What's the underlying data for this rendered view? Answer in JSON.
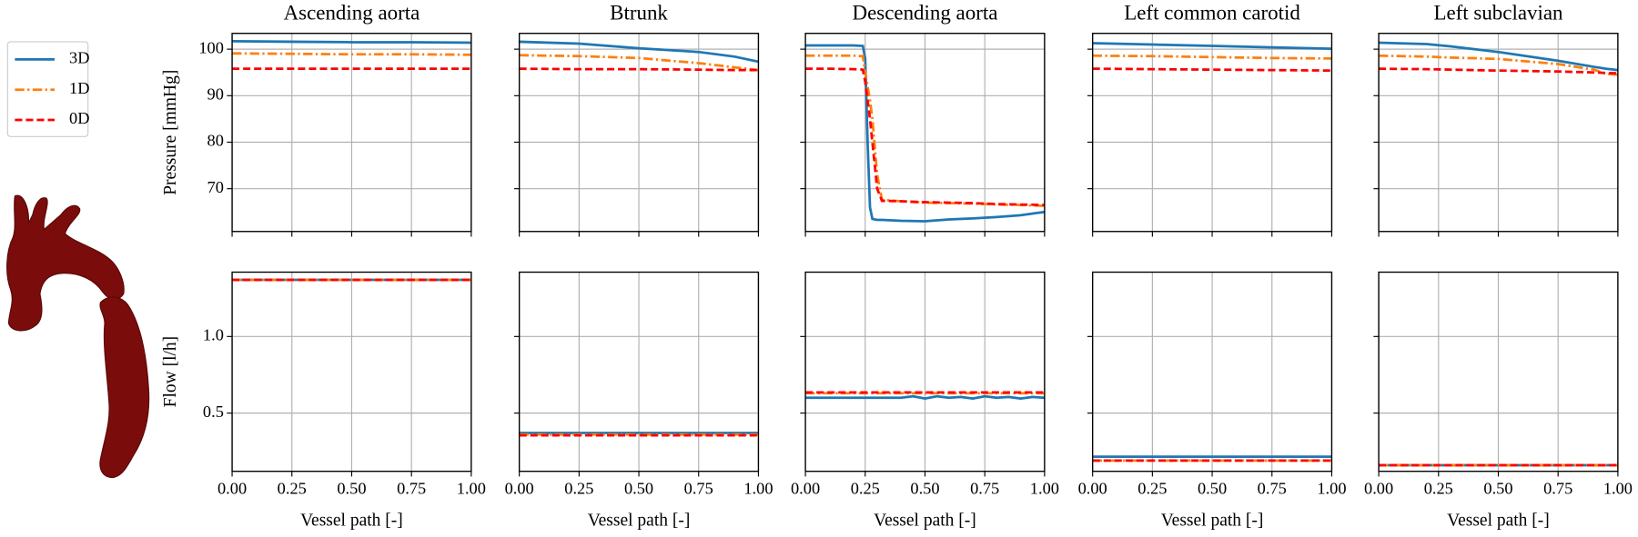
{
  "chart_data": [
    {
      "type": "line",
      "title": "Ascending aorta",
      "ylabel": "Pressure [mmHg]",
      "ylim": [
        60.8,
        103.4
      ],
      "yticks": [
        70,
        80,
        90,
        100
      ],
      "grid": true,
      "legend": "outside-left",
      "x": [
        0,
        0.25,
        0.5,
        0.75,
        1.0
      ],
      "series": [
        {
          "name": "3D",
          "color": "#1f77b4",
          "linestyle": "solid",
          "values": [
            101.7,
            101.6,
            101.5,
            101.5,
            101.4
          ]
        },
        {
          "name": "1D",
          "color": "#ff7f0e",
          "linestyle": "dashdot",
          "values": [
            99.1,
            99.0,
            98.9,
            98.9,
            98.8
          ]
        },
        {
          "name": "0D",
          "color": "#ff0000",
          "linestyle": "dashed",
          "values": [
            95.8,
            95.8,
            95.8,
            95.8,
            95.8
          ]
        }
      ]
    },
    {
      "type": "line",
      "title": "Btrunk",
      "x": [
        0,
        0.25,
        0.5,
        0.75,
        0.9,
        1.0
      ],
      "series": [
        {
          "name": "3D",
          "color": "#1f77b4",
          "linestyle": "solid",
          "values": [
            101.6,
            101.2,
            100.2,
            99.4,
            98.4,
            97.3
          ]
        },
        {
          "name": "1D",
          "color": "#ff7f0e",
          "linestyle": "dashdot",
          "values": [
            98.7,
            98.5,
            98.1,
            97.0,
            96.1,
            95.5
          ]
        },
        {
          "name": "0D",
          "color": "#ff0000",
          "linestyle": "dashed",
          "values": [
            95.8,
            95.7,
            95.7,
            95.6,
            95.5,
            95.5
          ]
        }
      ]
    },
    {
      "type": "line",
      "title": "Descending aorta",
      "x": [
        0,
        0.1,
        0.2,
        0.24,
        0.25,
        0.26,
        0.27,
        0.28,
        0.3,
        0.32,
        0.4,
        0.5,
        0.6,
        0.7,
        0.8,
        0.9,
        1.0
      ],
      "series": [
        {
          "name": "3D",
          "color": "#1f77b4",
          "linestyle": "solid",
          "values": [
            100.8,
            100.8,
            100.8,
            100.7,
            98,
            80,
            66,
            63.5,
            63.3,
            63.3,
            63.1,
            63.0,
            63.4,
            63.6,
            63.9,
            64.3,
            65.0
          ]
        },
        {
          "name": "1D",
          "color": "#ff7f0e",
          "linestyle": "dashdot",
          "values": [
            98.6,
            98.6,
            98.6,
            98.5,
            95,
            92,
            89,
            85,
            73,
            67.6,
            67.3,
            67.0,
            66.9,
            66.8,
            66.6,
            66.5,
            66.3
          ]
        },
        {
          "name": "0D",
          "color": "#ff0000",
          "linestyle": "dashed",
          "values": [
            95.8,
            95.8,
            95.7,
            95.6,
            93,
            89,
            85,
            80,
            70,
            67.4,
            67.3,
            67.1,
            67.0,
            66.9,
            66.7,
            66.6,
            66.5
          ]
        }
      ]
    },
    {
      "type": "line",
      "title": "Left common carotid",
      "x": [
        0,
        0.25,
        0.5,
        0.75,
        1.0
      ],
      "series": [
        {
          "name": "3D",
          "color": "#1f77b4",
          "linestyle": "solid",
          "values": [
            101.3,
            101.0,
            100.7,
            100.4,
            100.1
          ]
        },
        {
          "name": "1D",
          "color": "#ff7f0e",
          "linestyle": "dashdot",
          "values": [
            98.6,
            98.5,
            98.3,
            98.1,
            98.0
          ]
        },
        {
          "name": "0D",
          "color": "#ff0000",
          "linestyle": "dashed",
          "values": [
            95.8,
            95.7,
            95.6,
            95.5,
            95.4
          ]
        }
      ]
    },
    {
      "type": "line",
      "title": "Left subclavian",
      "x": [
        0,
        0.2,
        0.3,
        0.5,
        0.75,
        0.9,
        0.95,
        1.0
      ],
      "series": [
        {
          "name": "3D",
          "color": "#1f77b4",
          "linestyle": "solid",
          "values": [
            101.4,
            101.1,
            100.6,
            99.4,
            97.5,
            96.2,
            95.8,
            95.5
          ]
        },
        {
          "name": "1D",
          "color": "#ff7f0e",
          "linestyle": "dashdot",
          "values": [
            98.6,
            98.4,
            98.2,
            97.9,
            96.8,
            95.6,
            94.7,
            94.5
          ]
        },
        {
          "name": "0D",
          "color": "#ff0000",
          "linestyle": "dashed",
          "values": [
            95.8,
            95.7,
            95.6,
            95.4,
            95.2,
            95.0,
            94.9,
            94.8
          ]
        }
      ]
    },
    {
      "type": "line",
      "ylabel": "Flow [l/h]",
      "xlabel": "Vessel path [-]",
      "ylim": [
        0.12,
        1.42
      ],
      "yticks": [
        0.5,
        {
          "value": 1.0,
          "label": "1.0"
        }
      ],
      "grid": true,
      "xlim": [
        0,
        1
      ],
      "xticks": [
        {
          "value": 0,
          "label": "0.00"
        },
        {
          "value": 0.25,
          "label": "0.25"
        },
        {
          "value": 0.5,
          "label": "0.50"
        },
        {
          "value": 0.75,
          "label": "0.75"
        },
        {
          "value": 1,
          "label": "1.00"
        }
      ],
      "x": [
        0,
        0.5,
        1.0
      ],
      "series": [
        {
          "name": "3D",
          "color": "#1f77b4",
          "linestyle": "solid",
          "values": [
            1.37,
            1.37,
            1.37
          ]
        },
        {
          "name": "1D",
          "color": "#ff7f0e",
          "linestyle": "dashdot",
          "values": [
            1.37,
            1.37,
            1.37
          ]
        },
        {
          "name": "0D",
          "color": "#ff0000",
          "linestyle": "dashed",
          "values": [
            1.37,
            1.37,
            1.37
          ]
        }
      ]
    },
    {
      "type": "line",
      "xlabel": "Vessel path [-]",
      "xlim": [
        0,
        1
      ],
      "xticks": [
        {
          "value": 0,
          "label": "0.00"
        },
        {
          "value": 0.25,
          "label": "0.25"
        },
        {
          "value": 0.5,
          "label": "0.50"
        },
        {
          "value": 0.75,
          "label": "0.75"
        },
        {
          "value": 1,
          "label": "1.00"
        }
      ],
      "x": [
        0,
        0.5,
        1.0
      ],
      "series": [
        {
          "name": "3D",
          "color": "#1f77b4",
          "linestyle": "solid",
          "values": [
            0.37,
            0.37,
            0.37
          ]
        },
        {
          "name": "1D",
          "color": "#ff7f0e",
          "linestyle": "dashdot",
          "values": [
            0.36,
            0.36,
            0.36
          ]
        },
        {
          "name": "0D",
          "color": "#ff0000",
          "linestyle": "dashed",
          "values": [
            0.355,
            0.355,
            0.355
          ]
        }
      ]
    },
    {
      "type": "line",
      "xlabel": "Vessel path [-]",
      "xlim": [
        0,
        1
      ],
      "xticks": [
        {
          "value": 0,
          "label": "0.00"
        },
        {
          "value": 0.25,
          "label": "0.25"
        },
        {
          "value": 0.5,
          "label": "0.50"
        },
        {
          "value": 0.75,
          "label": "0.75"
        },
        {
          "value": 1,
          "label": "1.00"
        }
      ],
      "x": [
        0,
        0.1,
        0.2,
        0.3,
        0.4,
        0.45,
        0.5,
        0.55,
        0.6,
        0.65,
        0.7,
        0.75,
        0.8,
        0.85,
        0.9,
        0.95,
        1.0
      ],
      "series": [
        {
          "name": "3D",
          "color": "#1f77b4",
          "linestyle": "solid",
          "values": [
            0.6,
            0.6,
            0.6,
            0.6,
            0.6,
            0.61,
            0.595,
            0.61,
            0.6,
            0.605,
            0.595,
            0.61,
            0.6,
            0.605,
            0.595,
            0.605,
            0.6
          ]
        },
        {
          "name": "1D",
          "color": "#ff7f0e",
          "linestyle": "dashdot",
          "values": [
            0.63,
            0.63,
            0.63,
            0.63,
            0.63,
            0.63,
            0.63,
            0.63,
            0.63,
            0.63,
            0.63,
            0.63,
            0.63,
            0.63,
            0.63,
            0.63,
            0.63
          ]
        },
        {
          "name": "0D",
          "color": "#ff0000",
          "linestyle": "dashed",
          "values": [
            0.635,
            0.635,
            0.635,
            0.635,
            0.635,
            0.635,
            0.635,
            0.635,
            0.635,
            0.635,
            0.635,
            0.635,
            0.635,
            0.635,
            0.635,
            0.635,
            0.635
          ]
        }
      ]
    },
    {
      "type": "line",
      "xlabel": "Vessel path [-]",
      "xlim": [
        0,
        1
      ],
      "xticks": [
        {
          "value": 0,
          "label": "0.00"
        },
        {
          "value": 0.25,
          "label": "0.25"
        },
        {
          "value": 0.5,
          "label": "0.50"
        },
        {
          "value": 0.75,
          "label": "0.75"
        },
        {
          "value": 1,
          "label": "1.00"
        }
      ],
      "x": [
        0,
        0.5,
        1.0
      ],
      "series": [
        {
          "name": "3D",
          "color": "#1f77b4",
          "linestyle": "solid",
          "values": [
            0.215,
            0.215,
            0.215
          ]
        },
        {
          "name": "1D",
          "color": "#ff7f0e",
          "linestyle": "dashdot",
          "values": [
            0.19,
            0.19,
            0.19
          ]
        },
        {
          "name": "0D",
          "color": "#ff0000",
          "linestyle": "dashed",
          "values": [
            0.19,
            0.19,
            0.19
          ]
        }
      ]
    },
    {
      "type": "line",
      "xlabel": "Vessel path [-]",
      "xlim": [
        0,
        1
      ],
      "xticks": [
        {
          "value": 0,
          "label": "0.00"
        },
        {
          "value": 0.25,
          "label": "0.25"
        },
        {
          "value": 0.5,
          "label": "0.50"
        },
        {
          "value": 0.75,
          "label": "0.75"
        },
        {
          "value": 1,
          "label": "1.00"
        }
      ],
      "x": [
        0,
        0.5,
        1.0
      ],
      "series": [
        {
          "name": "3D",
          "color": "#1f77b4",
          "linestyle": "solid",
          "values": [
            0.16,
            0.16,
            0.16
          ]
        },
        {
          "name": "1D",
          "color": "#ff7f0e",
          "linestyle": "dashdot",
          "values": [
            0.16,
            0.16,
            0.16
          ]
        },
        {
          "name": "0D",
          "color": "#ff0000",
          "linestyle": "dashed",
          "values": [
            0.16,
            0.16,
            0.16
          ]
        }
      ]
    }
  ]
}
